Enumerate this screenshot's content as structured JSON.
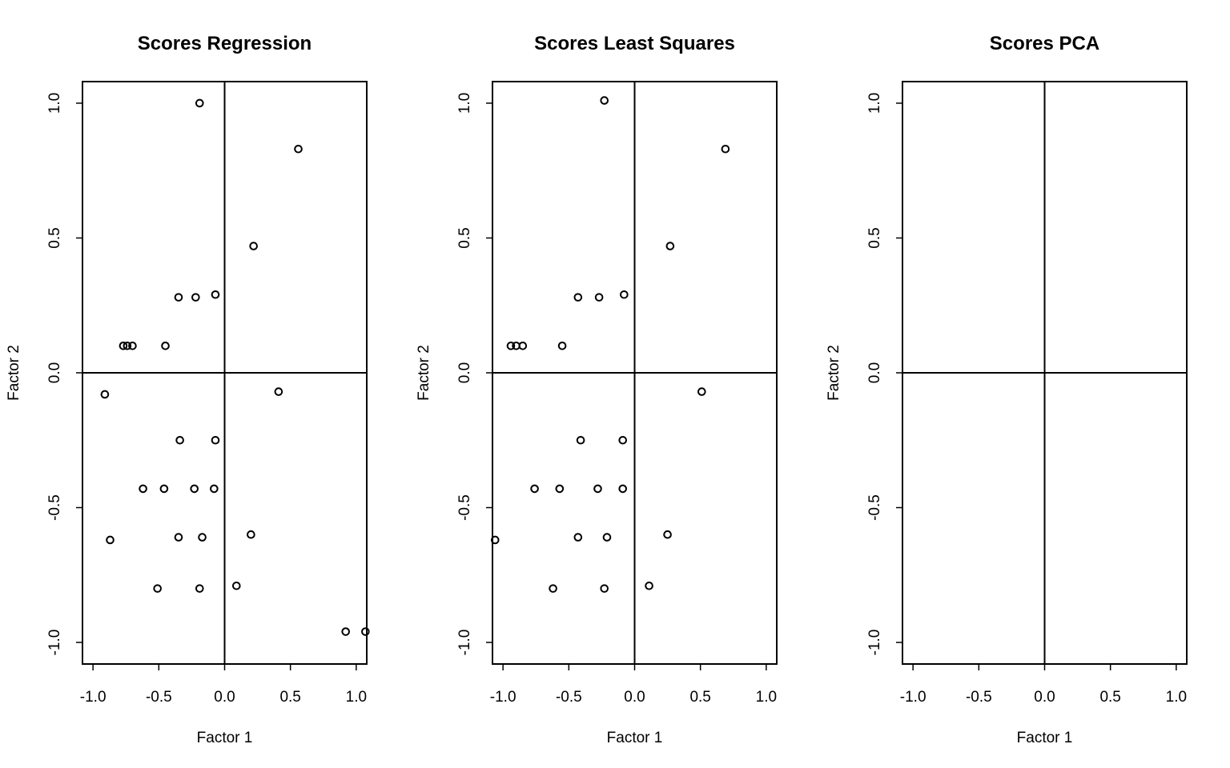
{
  "chart_data": [
    {
      "type": "scatter",
      "title": "Scores Regression",
      "xlabel": "Factor 1",
      "ylabel": "Factor 2",
      "xlim": [
        -1.08,
        1.08
      ],
      "ylim": [
        -1.08,
        1.08
      ],
      "xticks": [
        "-1.0",
        "-0.5",
        "0.0",
        "0.5",
        "1.0"
      ],
      "yticks": [
        "-1.0",
        "-0.5",
        "0.0",
        "0.5",
        "1.0"
      ],
      "reference_lines": {
        "x": 0,
        "y": 0
      },
      "x": [
        -0.19,
        0.56,
        0.22,
        -0.35,
        -0.22,
        -0.07,
        -0.77,
        -0.74,
        -0.7,
        -0.45,
        -0.91,
        0.41,
        -0.34,
        -0.07,
        -0.62,
        -0.46,
        -0.23,
        -0.08,
        -0.87,
        -0.35,
        -0.17,
        0.2,
        -0.51,
        -0.19,
        0.09,
        0.92,
        1.07
      ],
      "y": [
        1.0,
        0.83,
        0.47,
        0.28,
        0.28,
        0.29,
        0.1,
        0.1,
        0.1,
        0.1,
        -0.08,
        -0.07,
        -0.25,
        -0.25,
        -0.43,
        -0.43,
        -0.43,
        -0.43,
        -0.62,
        -0.61,
        -0.61,
        -0.6,
        -0.8,
        -0.8,
        -0.79,
        -0.96,
        -0.96
      ]
    },
    {
      "type": "scatter",
      "title": "Scores Least Squares",
      "xlabel": "Factor 1",
      "ylabel": "Factor 2",
      "xlim": [
        -1.08,
        1.08
      ],
      "ylim": [
        -1.08,
        1.08
      ],
      "xticks": [
        "-1.0",
        "-0.5",
        "0.0",
        "0.5",
        "1.0"
      ],
      "yticks": [
        "-1.0",
        "-0.5",
        "0.0",
        "0.5",
        "1.0"
      ],
      "reference_lines": {
        "x": 0,
        "y": 0
      },
      "x": [
        -0.23,
        0.69,
        0.27,
        -0.43,
        -0.27,
        -0.08,
        -0.94,
        -0.9,
        -0.85,
        -0.55,
        0.51,
        -0.41,
        -0.09,
        -0.76,
        -0.57,
        -0.28,
        -0.09,
        -1.06,
        -0.43,
        -0.21,
        0.25,
        -0.62,
        -0.23,
        0.11
      ],
      "y": [
        1.01,
        0.83,
        0.47,
        0.28,
        0.28,
        0.29,
        0.1,
        0.1,
        0.1,
        0.1,
        -0.07,
        -0.25,
        -0.25,
        -0.43,
        -0.43,
        -0.43,
        -0.43,
        -0.62,
        -0.61,
        -0.61,
        -0.6,
        -0.8,
        -0.8,
        -0.79
      ]
    },
    {
      "type": "scatter",
      "title": "Scores PCA",
      "xlabel": "Factor 1",
      "ylabel": "Factor 2",
      "xlim": [
        -1.08,
        1.08
      ],
      "ylim": [
        -1.08,
        1.08
      ],
      "xticks": [
        "-1.0",
        "-0.5",
        "0.0",
        "0.5",
        "1.0"
      ],
      "yticks": [
        "-1.0",
        "-0.5",
        "0.0",
        "0.5",
        "1.0"
      ],
      "reference_lines": {
        "x": 0,
        "y": 0
      },
      "x": [],
      "y": []
    }
  ]
}
